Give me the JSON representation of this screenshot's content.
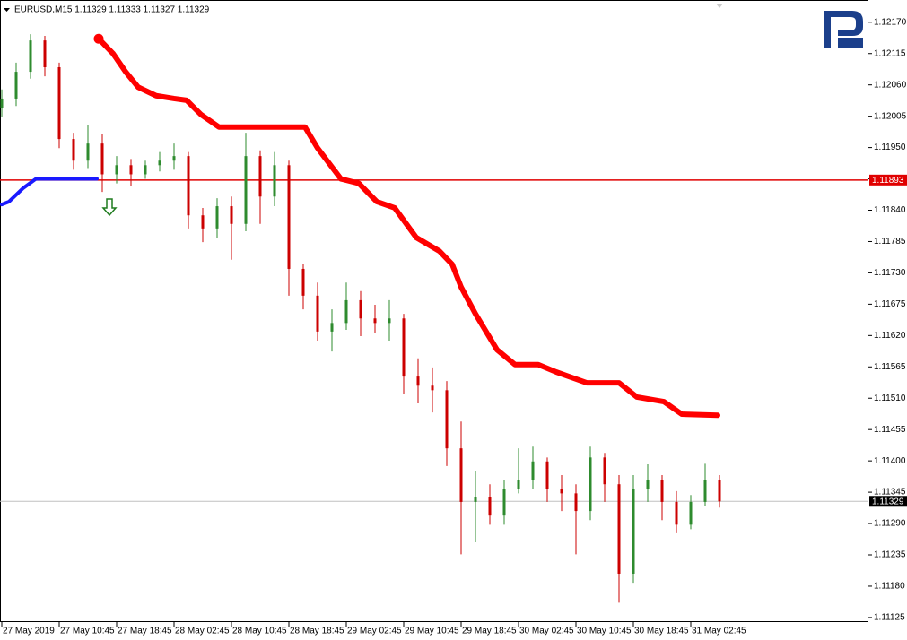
{
  "chart_data": {
    "type": "candlestick",
    "title": "EURUSD,M15  1.11329 1.11333 1.11327 1.11329",
    "up_color": "#2e8b2e",
    "down_color": "#cc0000",
    "x": [
      0,
      8,
      16,
      24,
      32,
      40,
      48,
      56,
      64,
      72,
      80,
      88,
      96,
      104,
      112,
      120,
      128,
      136,
      144,
      152,
      160,
      168,
      176,
      184,
      192,
      200,
      208,
      216,
      224,
      232,
      240,
      248,
      256,
      264,
      272,
      280,
      288,
      296,
      304,
      312,
      320,
      328,
      336,
      344,
      352,
      360,
      368,
      376,
      384,
      392,
      400
    ],
    "open": [
      1.1202,
      1.12036,
      1.12083,
      1.12138,
      1.12091,
      1.11965,
      1.11927,
      1.11957,
      1.11903,
      1.11919,
      1.11903,
      1.11919,
      1.11927,
      1.11935,
      1.11831,
      1.11808,
      1.11847,
      1.11816,
      1.11935,
      1.11864,
      1.11919,
      1.11737,
      1.1169,
      1.11627,
      1.11642,
      1.11682,
      1.1165,
      1.11642,
      1.1165,
      1.11548,
      1.11532,
      1.11524,
      1.11422,
      1.11328,
      1.11336,
      1.11304,
      1.11351,
      1.11367,
      1.11399,
      1.11351,
      1.11343,
      1.11312,
      1.11406,
      1.11359,
      1.11202,
      1.11351,
      1.11367,
      1.11328,
      1.11288,
      1.11328,
      1.11367
    ],
    "high": [
      1.12052,
      1.12099,
      1.12149,
      1.12146,
      1.12099,
      1.11976,
      1.11989,
      1.11973,
      1.11935,
      1.1193,
      1.11927,
      1.11942,
      1.11957,
      1.11942,
      1.11844,
      1.11861,
      1.11864,
      1.11976,
      1.11945,
      1.11942,
      1.11927,
      1.11745,
      1.11713,
      1.11666,
      1.11713,
      1.11698,
      1.11674,
      1.11682,
      1.11658,
      1.1158,
      1.11564,
      1.1154,
      1.11469,
      1.11383,
      1.11359,
      1.11367,
      1.11422,
      1.11425,
      1.11406,
      1.11375,
      1.11359,
      1.11425,
      1.11414,
      1.11375,
      1.11375,
      1.11394,
      1.11375,
      1.11347,
      1.1134,
      1.11395,
      1.11375
    ],
    "low": [
      1.12004,
      1.12023,
      1.12071,
      1.12075,
      1.11949,
      1.11911,
      1.11914,
      1.11872,
      1.11887,
      1.11883,
      1.11895,
      1.11908,
      1.11911,
      1.11808,
      1.11784,
      1.11792,
      1.11753,
      1.11803,
      1.11816,
      1.11847,
      1.1169,
      1.11666,
      1.11611,
      1.11592,
      1.1163,
      1.11619,
      1.11624,
      1.11611,
      1.11517,
      1.11501,
      1.11485,
      1.11391,
      1.11236,
      1.11257,
      1.11288,
      1.11288,
      1.11343,
      1.11351,
      1.11328,
      1.11312,
      1.11236,
      1.11296,
      1.11328,
      1.11151,
      1.11186,
      1.11328,
      1.11296,
      1.11273,
      1.1128,
      1.1132,
      1.11318
    ],
    "close": [
      1.12036,
      1.12083,
      1.12138,
      1.12091,
      1.11965,
      1.11927,
      1.11957,
      1.11903,
      1.11919,
      1.11903,
      1.11919,
      1.11927,
      1.11935,
      1.11831,
      1.11808,
      1.11847,
      1.11816,
      1.11935,
      1.11864,
      1.11919,
      1.11737,
      1.1169,
      1.11627,
      1.11642,
      1.11682,
      1.1165,
      1.11642,
      1.1165,
      1.11548,
      1.11532,
      1.11524,
      1.11422,
      1.11328,
      1.11336,
      1.11304,
      1.11351,
      1.11367,
      1.11399,
      1.11351,
      1.11343,
      1.11312,
      1.11406,
      1.11359,
      1.11202,
      1.11351,
      1.11367,
      1.11328,
      1.11288,
      1.11328,
      1.11367,
      1.11329
    ],
    "overlays": [
      {
        "color": "#ff0000",
        "width": 6,
        "x": [
          54,
          62,
          69,
          76,
          86,
          96,
          103,
          111,
          121,
          149,
          169,
          176,
          189,
          199,
          209,
          219,
          231,
          244,
          251,
          256,
          264,
          276,
          286,
          299,
          309,
          326,
          344,
          354,
          369,
          379,
          399
        ],
        "values": [
          1.12141,
          1.12115,
          1.12083,
          1.12056,
          1.12041,
          1.12036,
          1.12033,
          1.12008,
          1.11986,
          1.11986,
          1.11986,
          1.11949,
          1.11895,
          1.11887,
          1.11855,
          1.11844,
          1.11792,
          1.11768,
          1.11745,
          1.11705,
          1.11658,
          1.11595,
          1.11569,
          1.11569,
          1.11556,
          1.11537,
          1.11537,
          1.11512,
          1.11504,
          1.11482,
          1.1148
        ]
      },
      {
        "color": "#1a1aff",
        "width": 4,
        "x": [
          0,
          4,
          12,
          19,
          53
        ],
        "values": [
          1.1185,
          1.11855,
          1.11879,
          1.11895,
          1.11895
        ]
      }
    ],
    "arrows": [
      {
        "x": 60,
        "value": 1.11844,
        "color": "#1e7b1e"
      }
    ],
    "hlines": [
      {
        "value": 1.11893,
        "color": "#e00000",
        "label_bg": "#e00000"
      },
      {
        "value": 1.11329,
        "color": "#c0c0c0",
        "label_bg": "#000000"
      }
    ],
    "xlim": [
      -1,
      483
    ],
    "ylim": [
      1.11117,
      1.12209
    ],
    "xticks": [
      {
        "value": 0,
        "label": "27 May 2019"
      },
      {
        "value": 32,
        "label": "27 May 10:45"
      },
      {
        "value": 64,
        "label": "27 May 18:45"
      },
      {
        "value": 96,
        "label": "28 May 02:45"
      },
      {
        "value": 128,
        "label": "28 May 10:45"
      },
      {
        "value": 160,
        "label": "28 May 18:45"
      },
      {
        "value": 192,
        "label": "29 May 02:45"
      },
      {
        "value": 224,
        "label": "29 May 10:45"
      },
      {
        "value": 256,
        "label": "29 May 18:45"
      },
      {
        "value": 288,
        "label": "30 May 02:45"
      },
      {
        "value": 320,
        "label": "30 May 10:45"
      },
      {
        "value": 352,
        "label": "30 May 18:45"
      },
      {
        "value": 384,
        "label": "31 May 02:45"
      }
    ],
    "yticks": [
      {
        "value": 1.1217,
        "label": "1.12170"
      },
      1.12115,
      {
        "value": 1.1206,
        "label": "1.12060"
      },
      1.12005,
      {
        "value": 1.1195,
        "label": "1.11950"
      },
      1.11895,
      {
        "value": 1.1184,
        "label": "1.11840"
      },
      1.11785,
      {
        "value": 1.1173,
        "label": "1.11730"
      },
      1.11675,
      {
        "value": 1.1162,
        "label": "1.11620"
      },
      1.11565,
      {
        "value": 1.1151,
        "label": "1.11510"
      },
      1.11455,
      {
        "value": 1.114,
        "label": "1.11400"
      },
      1.11345,
      {
        "value": 1.1129,
        "label": "1.11290"
      },
      1.11235,
      {
        "value": 1.1118,
        "label": "1.11180"
      },
      1.11125
    ]
  }
}
